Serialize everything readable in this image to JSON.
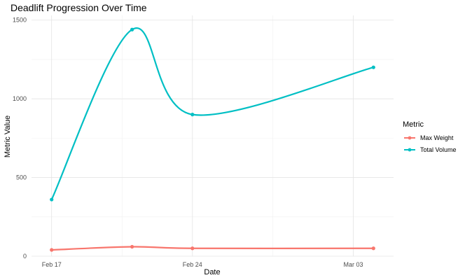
{
  "chart_data": {
    "type": "line",
    "title": "Deadlift Progression Over Time",
    "xlabel": "Date",
    "ylabel": "Metric Value",
    "x": [
      "2024-02-17",
      "2024-02-21",
      "2024-02-24",
      "2024-03-04"
    ],
    "x_ticks": [
      {
        "date": "2024-02-17",
        "label": "Feb 17"
      },
      {
        "date": "2024-02-24",
        "label": "Feb 24"
      },
      {
        "date": "2024-03-03",
        "label": "Mar 03"
      }
    ],
    "y_ticks": [
      0,
      500,
      1000,
      1500
    ],
    "ylim": [
      0,
      1530
    ],
    "grid": true,
    "legend_title": "Metric",
    "legend_position": "right",
    "series": [
      {
        "name": "Max Weight",
        "color": "#F8766D",
        "values": [
          40,
          60,
          50,
          50
        ]
      },
      {
        "name": "Total Volume",
        "color": "#00BFC4",
        "values": [
          360,
          1440,
          900,
          1200
        ]
      }
    ]
  }
}
